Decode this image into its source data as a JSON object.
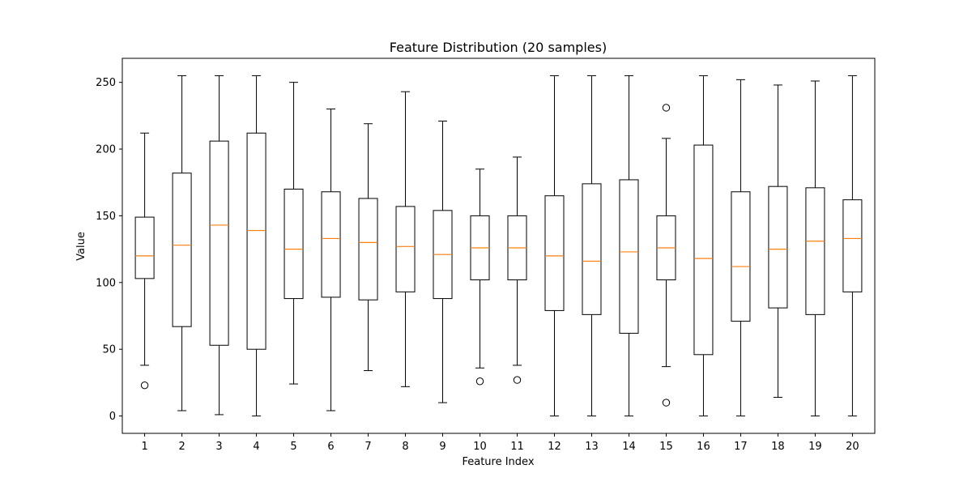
{
  "chart_data": {
    "type": "boxplot",
    "title": "Feature Distribution (20 samples)",
    "xlabel": "Feature Index",
    "ylabel": "Value",
    "ylim": [
      -13,
      268
    ],
    "yticks": [
      0,
      50,
      100,
      150,
      200,
      250
    ],
    "grid": false,
    "colors": {
      "box": "#000000",
      "median": "#ff7f0e",
      "background": "#ffffff"
    },
    "categories": [
      "1",
      "2",
      "3",
      "4",
      "5",
      "6",
      "7",
      "8",
      "9",
      "10",
      "11",
      "12",
      "13",
      "14",
      "15",
      "16",
      "17",
      "18",
      "19",
      "20"
    ],
    "boxes": [
      {
        "q1": 103,
        "median": 120,
        "q3": 149,
        "whisker_low": 38,
        "whisker_high": 212,
        "outliers": [
          23
        ]
      },
      {
        "q1": 67,
        "median": 128,
        "q3": 182,
        "whisker_low": 4,
        "whisker_high": 255,
        "outliers": []
      },
      {
        "q1": 53,
        "median": 143,
        "q3": 206,
        "whisker_low": 1,
        "whisker_high": 255,
        "outliers": []
      },
      {
        "q1": 50,
        "median": 139,
        "q3": 212,
        "whisker_low": 0,
        "whisker_high": 255,
        "outliers": []
      },
      {
        "q1": 88,
        "median": 125,
        "q3": 170,
        "whisker_low": 24,
        "whisker_high": 250,
        "outliers": []
      },
      {
        "q1": 89,
        "median": 133,
        "q3": 168,
        "whisker_low": 4,
        "whisker_high": 230,
        "outliers": []
      },
      {
        "q1": 87,
        "median": 130,
        "q3": 163,
        "whisker_low": 34,
        "whisker_high": 219,
        "outliers": []
      },
      {
        "q1": 93,
        "median": 127,
        "q3": 157,
        "whisker_low": 22,
        "whisker_high": 243,
        "outliers": []
      },
      {
        "q1": 88,
        "median": 121,
        "q3": 154,
        "whisker_low": 10,
        "whisker_high": 221,
        "outliers": []
      },
      {
        "q1": 102,
        "median": 126,
        "q3": 150,
        "whisker_low": 36,
        "whisker_high": 185,
        "outliers": [
          26
        ]
      },
      {
        "q1": 102,
        "median": 126,
        "q3": 150,
        "whisker_low": 38,
        "whisker_high": 194,
        "outliers": [
          27
        ]
      },
      {
        "q1": 79,
        "median": 120,
        "q3": 165,
        "whisker_low": 0,
        "whisker_high": 255,
        "outliers": []
      },
      {
        "q1": 76,
        "median": 116,
        "q3": 174,
        "whisker_low": 0,
        "whisker_high": 255,
        "outliers": []
      },
      {
        "q1": 62,
        "median": 123,
        "q3": 177,
        "whisker_low": 0,
        "whisker_high": 255,
        "outliers": []
      },
      {
        "q1": 102,
        "median": 126,
        "q3": 150,
        "whisker_low": 37,
        "whisker_high": 208,
        "outliers": [
          231,
          10
        ]
      },
      {
        "q1": 46,
        "median": 118,
        "q3": 203,
        "whisker_low": 0,
        "whisker_high": 255,
        "outliers": []
      },
      {
        "q1": 71,
        "median": 112,
        "q3": 168,
        "whisker_low": 0,
        "whisker_high": 252,
        "outliers": []
      },
      {
        "q1": 81,
        "median": 125,
        "q3": 172,
        "whisker_low": 14,
        "whisker_high": 248,
        "outliers": []
      },
      {
        "q1": 76,
        "median": 131,
        "q3": 171,
        "whisker_low": 0,
        "whisker_high": 251,
        "outliers": []
      },
      {
        "q1": 93,
        "median": 133,
        "q3": 162,
        "whisker_low": 0,
        "whisker_high": 255,
        "outliers": []
      }
    ]
  }
}
